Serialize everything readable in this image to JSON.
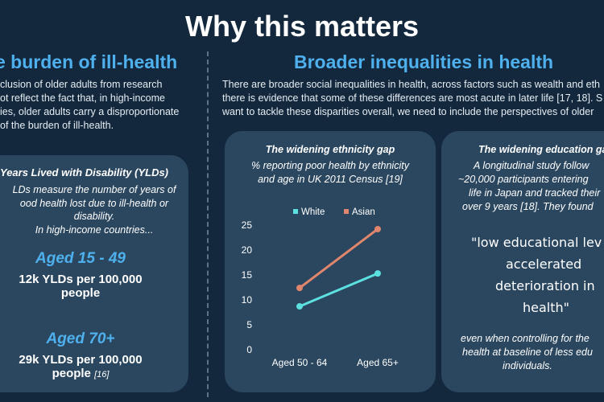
{
  "page": {
    "title": "Why this matters"
  },
  "left_section": {
    "heading": "e burden of ill-health",
    "paragraph_lines": [
      "clusion of older adults from research",
      "ot reflect the fact that, in high-income",
      "ies, older adults carry a disproportionate",
      "of the burden of ill-health."
    ],
    "card": {
      "title": "Years Lived with Disability (YLDs)",
      "desc_lines": [
        "LDs measure the number of years of",
        "ood health lost due to ill-health or",
        "disability.",
        "In high-income countries..."
      ],
      "group1_label": "Aged 15 - 49",
      "group1_stat_line1": "12k YLDs per 100,000",
      "group1_stat_line2": "people",
      "group2_label": "Aged 70+",
      "group2_stat_line1": "29k YLDs per 100,000",
      "group2_stat_line2": "people",
      "citation": "[16]"
    }
  },
  "right_section": {
    "heading": "Broader inequalities in health",
    "paragraph_lines": [
      "There are broader social inequalities in health, across factors such as wealth and eth",
      "there is evidence that some of these differences are most acute in later life [17, 18]. S",
      "want to tackle these disparities overall, we need to include the perspectives of older"
    ],
    "ethnicity_card": {
      "title": "The widening ethnicity gap",
      "subtitle_lines": [
        "% reporting poor health by ethnicity",
        "and age in UK 2011 Census [19]"
      ]
    },
    "education_card": {
      "title": "The widening education ga",
      "body_lines": [
        "A longitudinal study follow",
        "~20,000 participants entering",
        "life in Japan and tracked their",
        "over 9 years [18]. They found"
      ],
      "quote_lines": [
        "\"low educational lev",
        "accelerated",
        "deterioration in",
        "health\""
      ],
      "footer_lines": [
        "even when controlling for the",
        "health at baseline of less edu",
        "individuals."
      ]
    }
  },
  "chart_data": {
    "type": "line",
    "categories": [
      "Aged 50 - 64",
      "Aged 65+"
    ],
    "series": [
      {
        "name": "White",
        "color": "#5ce0e0",
        "values": [
          8.7,
          15.3
        ]
      },
      {
        "name": "Asian",
        "color": "#e0866d",
        "values": [
          12.4,
          24.2
        ]
      }
    ],
    "yticks": [
      "0",
      "5",
      "10",
      "15",
      "20",
      "25"
    ],
    "ylim": [
      0,
      25
    ],
    "grid": false,
    "legend": "top"
  }
}
